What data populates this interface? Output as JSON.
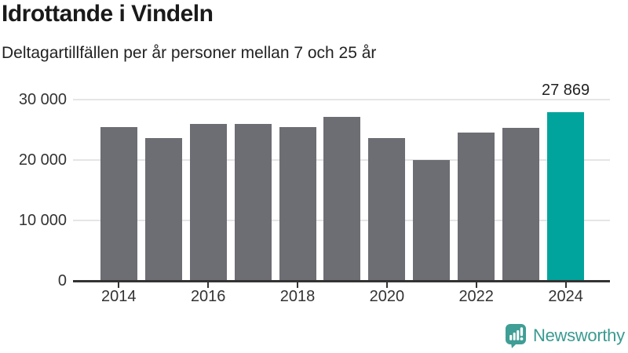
{
  "header": {
    "title": "Idrottande i Vindeln",
    "subtitle": "Deltagartillfällen per år personer mellan 7 och 25 år"
  },
  "chart_data": {
    "type": "bar",
    "title": "Idrottande i Vindeln",
    "subtitle": "Deltagartillfällen per år personer mellan 7 och 25 år",
    "categories": [
      "2014",
      "2015",
      "2016",
      "2017",
      "2018",
      "2019",
      "2020",
      "2021",
      "2022",
      "2023",
      "2024"
    ],
    "values": [
      25500,
      23600,
      26000,
      26000,
      25500,
      27200,
      23600,
      20000,
      24600,
      25300,
      27869
    ],
    "highlight_category": "2024",
    "annotation": {
      "category": "2024",
      "label": "27 869"
    },
    "xlabel": "",
    "ylabel": "",
    "ylim": [
      0,
      30000
    ],
    "yticks": [
      {
        "value": 0,
        "label": "0"
      },
      {
        "value": 10000,
        "label": "10 000"
      },
      {
        "value": 20000,
        "label": "20 000"
      },
      {
        "value": 30000,
        "label": "30 000"
      }
    ],
    "xticks": [
      "2014",
      "2016",
      "2018",
      "2020",
      "2022",
      "2024"
    ],
    "grid": true,
    "legend": false,
    "colors": {
      "bar": "#6d6d74",
      "highlight": "#00a49c",
      "grid": "#e5e5e5",
      "axis": "#333333"
    }
  },
  "footer": {
    "brand": "Newsworthy",
    "brand_color": "#3a9a91",
    "logo_color": "#3f9e95"
  }
}
